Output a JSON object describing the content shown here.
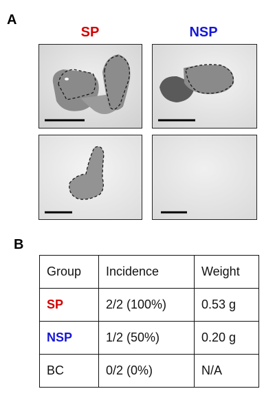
{
  "panel_a": {
    "letter": "A",
    "columns": [
      {
        "label": "SP",
        "color": "#d40000"
      },
      {
        "label": "NSP",
        "color": "#1616d8"
      }
    ]
  },
  "panel_b": {
    "letter": "B",
    "headers": [
      "Group",
      "Incidence",
      "Weight"
    ],
    "rows": [
      {
        "group": "SP",
        "group_color": "#d40000",
        "incidence": "2/2 (100%)",
        "weight": "0.53 g"
      },
      {
        "group": "NSP",
        "group_color": "#1616d8",
        "incidence": "1/2 (50%)",
        "weight": "0.20 g"
      },
      {
        "group": "BC",
        "group_color": "#111111",
        "incidence": "0/2 (0%)",
        "weight": "N/A"
      }
    ]
  }
}
